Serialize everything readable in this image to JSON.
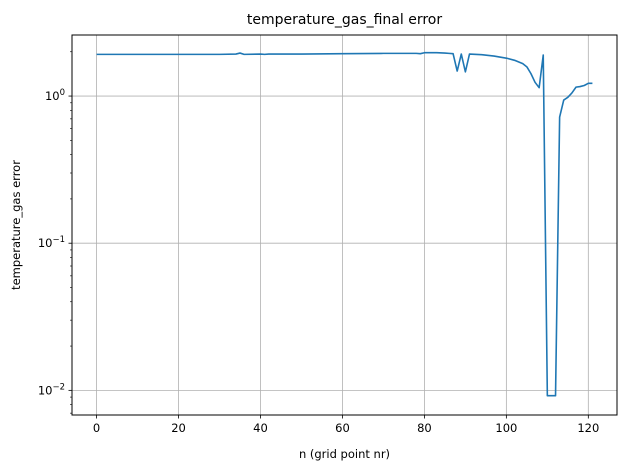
{
  "chart_data": {
    "type": "line",
    "title": "temperature_gas_final error",
    "xlabel": "n (grid point nr)",
    "ylabel": "temperature_gas error",
    "xlim": [
      -6,
      127
    ],
    "ylim": [
      0.0068,
      2.6
    ],
    "yscale": "log",
    "grid": true,
    "x_ticks": [
      0,
      20,
      40,
      60,
      80,
      100,
      120
    ],
    "y_major_ticks": [
      {
        "value": 0.01,
        "base": "10",
        "exp": "−2"
      },
      {
        "value": 0.1,
        "base": "10",
        "exp": "−1"
      },
      {
        "value": 1,
        "base": "10",
        "exp": "0"
      }
    ],
    "series": [
      {
        "color": "#1f77b4",
        "points": [
          [
            0,
            1.92
          ],
          [
            5,
            1.92
          ],
          [
            10,
            1.92
          ],
          [
            15,
            1.92
          ],
          [
            20,
            1.92
          ],
          [
            25,
            1.92
          ],
          [
            30,
            1.92
          ],
          [
            34,
            1.93
          ],
          [
            35,
            1.96
          ],
          [
            36,
            1.92
          ],
          [
            40,
            1.93
          ],
          [
            41,
            1.92
          ],
          [
            42,
            1.93
          ],
          [
            50,
            1.93
          ],
          [
            60,
            1.94
          ],
          [
            70,
            1.95
          ],
          [
            78,
            1.95
          ],
          [
            79,
            1.94
          ],
          [
            80,
            1.97
          ],
          [
            83,
            1.97
          ],
          [
            85,
            1.96
          ],
          [
            86,
            1.95
          ],
          [
            87,
            1.94
          ],
          [
            88,
            1.48
          ],
          [
            89,
            1.93
          ],
          [
            90,
            1.46
          ],
          [
            91,
            1.93
          ],
          [
            94,
            1.91
          ],
          [
            97,
            1.87
          ],
          [
            100,
            1.81
          ],
          [
            102,
            1.75
          ],
          [
            104,
            1.66
          ],
          [
            105,
            1.58
          ],
          [
            106,
            1.42
          ],
          [
            107,
            1.24
          ],
          [
            108,
            1.14
          ],
          [
            109,
            1.9
          ],
          [
            110,
            0.0092
          ],
          [
            112,
            0.0092
          ],
          [
            113,
            0.72
          ],
          [
            114,
            0.94
          ],
          [
            115,
            0.98
          ],
          [
            116,
            1.05
          ],
          [
            117,
            1.15
          ],
          [
            118,
            1.16
          ],
          [
            119,
            1.18
          ],
          [
            120,
            1.22
          ],
          [
            121,
            1.22
          ]
        ]
      }
    ]
  }
}
